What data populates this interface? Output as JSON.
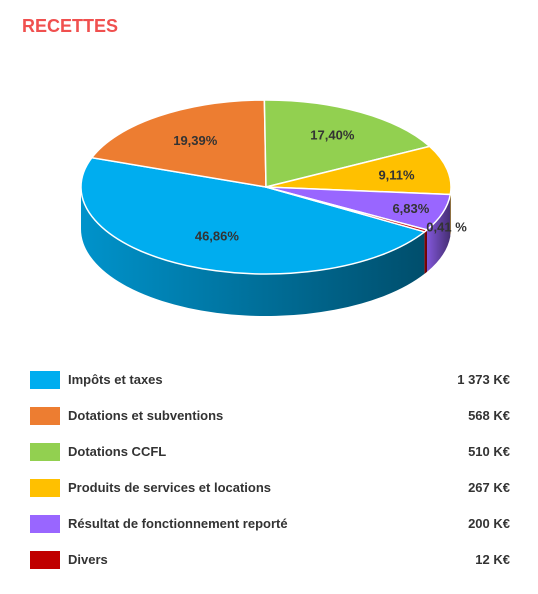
{
  "title": "RECETTES",
  "chart_data": {
    "type": "pie",
    "categories": [
      "Impôts et taxes",
      "Dotations et subventions",
      "Dotations CCFL",
      "Produits de services et locations",
      "Résultat de fonctionnement reporté",
      "Divers"
    ],
    "values": [
      46.86,
      19.39,
      17.4,
      9.11,
      6.83,
      0.41
    ],
    "percent_labels": [
      "46,86%",
      "19,39%",
      "17,40%",
      "9,11%",
      "6,83%",
      "0,41 %"
    ],
    "amounts": [
      "1 373 K€",
      "568 K€",
      "510 K€",
      "267 K€",
      "200 K€",
      "12 K€"
    ],
    "colors": [
      "#00adef",
      "#ed7d31",
      "#92d050",
      "#ffc000",
      "#9966ff",
      "#c00000"
    ],
    "style": "3d",
    "legend_placement": "bottom"
  }
}
